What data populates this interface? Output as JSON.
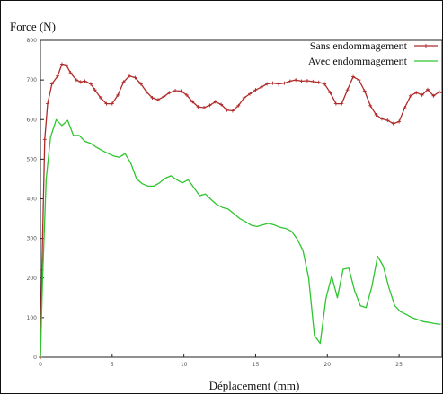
{
  "chart_data": {
    "type": "line",
    "title": "",
    "ylabel": "Force (N)",
    "xlabel": "Déplacement (mm)",
    "xlim": [
      0,
      28
    ],
    "ylim": [
      0,
      800
    ],
    "xticks": [
      0,
      5,
      10,
      15,
      20,
      25
    ],
    "yticks": [
      0,
      100,
      200,
      300,
      400,
      500,
      600,
      700,
      800
    ],
    "grid": false,
    "legend_position": "top-right",
    "series": [
      {
        "name": "Sans endommagement",
        "color": "#b02a2a",
        "marker": "plus",
        "x": [
          0,
          0.1,
          0.3,
          0.5,
          0.8,
          1.2,
          1.5,
          1.8,
          2.1,
          2.5,
          2.8,
          3.1,
          3.5,
          3.8,
          4.2,
          4.6,
          5.0,
          5.4,
          5.8,
          6.2,
          6.6,
          7.0,
          7.4,
          7.8,
          8.2,
          8.6,
          9.0,
          9.4,
          9.8,
          10.2,
          10.6,
          11.0,
          11.4,
          11.8,
          12.2,
          12.6,
          13.0,
          13.4,
          13.8,
          14.2,
          14.6,
          15.0,
          15.4,
          15.8,
          16.2,
          16.6,
          17.0,
          17.4,
          17.8,
          18.2,
          18.6,
          19.0,
          19.4,
          19.8,
          20.2,
          20.6,
          21.0,
          21.4,
          21.8,
          22.2,
          22.6,
          23.0,
          23.4,
          23.8,
          24.2,
          24.6,
          25.0,
          25.4,
          25.8,
          26.2,
          26.6,
          27.0,
          27.4,
          27.8,
          28.0
        ],
        "y": [
          0,
          220,
          550,
          640,
          690,
          710,
          740,
          738,
          718,
          700,
          695,
          697,
          690,
          675,
          655,
          640,
          640,
          662,
          695,
          710,
          706,
          690,
          670,
          655,
          650,
          658,
          668,
          673,
          672,
          662,
          645,
          632,
          630,
          636,
          645,
          638,
          624,
          622,
          635,
          655,
          665,
          675,
          682,
          690,
          692,
          690,
          692,
          697,
          700,
          697,
          698,
          696,
          694,
          690,
          668,
          640,
          640,
          675,
          708,
          700,
          672,
          635,
          612,
          602,
          598,
          590,
          595,
          630,
          660,
          668,
          662,
          676,
          660,
          670,
          668
        ]
      },
      {
        "name": "Avec endommagement",
        "color": "#2ec52e",
        "marker": "none",
        "x": [
          0,
          0.15,
          0.4,
          0.7,
          1.1,
          1.5,
          1.9,
          2.3,
          2.7,
          3.1,
          3.5,
          3.9,
          4.3,
          4.7,
          5.1,
          5.5,
          5.9,
          6.3,
          6.7,
          7.1,
          7.5,
          7.9,
          8.3,
          8.7,
          9.1,
          9.5,
          9.9,
          10.3,
          10.7,
          11.1,
          11.5,
          11.9,
          12.3,
          12.7,
          13.1,
          13.5,
          13.9,
          14.3,
          14.7,
          15.1,
          15.5,
          15.9,
          16.3,
          16.7,
          17.1,
          17.5,
          17.9,
          18.3,
          18.7,
          19.1,
          19.5,
          19.9,
          20.3,
          20.7,
          21.1,
          21.5,
          21.9,
          22.3,
          22.7,
          23.1,
          23.5,
          23.9,
          24.3,
          24.7,
          25.1,
          25.5,
          25.9,
          26.3,
          26.7,
          27.1,
          27.5,
          27.9
        ],
        "y": [
          0,
          200,
          450,
          555,
          600,
          585,
          598,
          560,
          560,
          545,
          540,
          530,
          522,
          515,
          508,
          505,
          514,
          490,
          450,
          438,
          432,
          432,
          440,
          452,
          458,
          448,
          440,
          448,
          428,
          408,
          412,
          398,
          385,
          378,
          374,
          362,
          350,
          342,
          333,
          330,
          334,
          338,
          334,
          328,
          325,
          318,
          298,
          270,
          200,
          55,
          35,
          148,
          205,
          150,
          222,
          225,
          168,
          130,
          125,
          178,
          255,
          230,
          175,
          130,
          115,
          108,
          100,
          95,
          90,
          88,
          85,
          83
        ]
      }
    ]
  }
}
